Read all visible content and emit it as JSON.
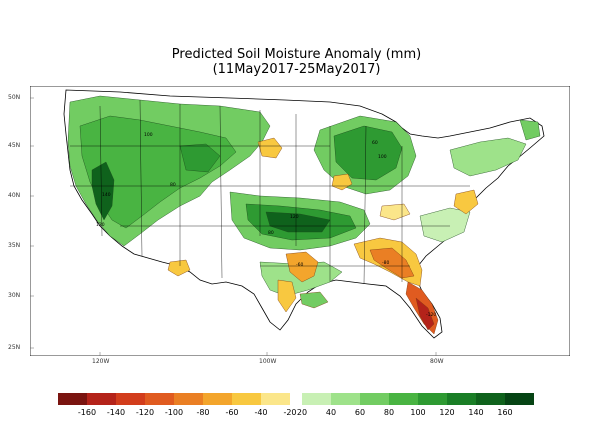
{
  "title": {
    "line1": "Predicted Soil Moisture Anomaly (mm)",
    "line2": "(11May2017-25May2017)"
  },
  "map": {
    "region": "Contiguous United States",
    "lat_labels": [
      "50N",
      "45N",
      "40N",
      "35N",
      "30N",
      "25N"
    ],
    "lon_labels": [
      "120W",
      "100W",
      "80W"
    ],
    "background_color": "#ffffff"
  },
  "legend": {
    "labels": [
      "-160",
      "-140",
      "-120",
      "-100",
      "-80",
      "-60",
      "-40",
      "-20",
      "20",
      "40",
      "60",
      "80",
      "100",
      "120",
      "140",
      "160"
    ],
    "dry_colors": [
      "#7a1410",
      "#b4231a",
      "#d23d1c",
      "#e05b20",
      "#ea7f24",
      "#f3a52c",
      "#f8c840",
      "#fbe68a"
    ],
    "wet_colors": [
      "#c8f0b4",
      "#9ee28a",
      "#72cc62",
      "#49b442",
      "#2e9a32",
      "#1a7e26",
      "#0f621c",
      "#064414"
    ]
  }
}
